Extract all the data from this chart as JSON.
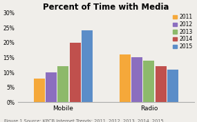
{
  "title": "Percent of Time with Media",
  "categories": [
    "Mobile",
    "Radio"
  ],
  "years": [
    "2011",
    "2012",
    "2013",
    "2014",
    "2015"
  ],
  "values": {
    "Mobile": [
      0.08,
      0.1,
      0.12,
      0.2,
      0.24
    ],
    "Radio": [
      0.16,
      0.15,
      0.14,
      0.12,
      0.11
    ]
  },
  "colors": [
    "#F5A83A",
    "#8B6EBF",
    "#8DB96B",
    "#C0504D",
    "#5B8DC8"
  ],
  "ylim": [
    0,
    0.3
  ],
  "yticks": [
    0,
    0.05,
    0.1,
    0.15,
    0.2,
    0.25,
    0.3
  ],
  "ytick_labels": [
    "0%",
    "5%",
    "10%",
    "15%",
    "20%",
    "25%",
    "30%"
  ],
  "footnote": "Figure 1 Source: KPCB Internet Trends: 2011, 2012, 2013, 2014, 2015",
  "background_color": "#F0EEEA",
  "title_fontsize": 8.5,
  "legend_fontsize": 5.5,
  "tick_fontsize": 5.5,
  "cat_fontsize": 6.5,
  "footnote_fontsize": 4.8
}
